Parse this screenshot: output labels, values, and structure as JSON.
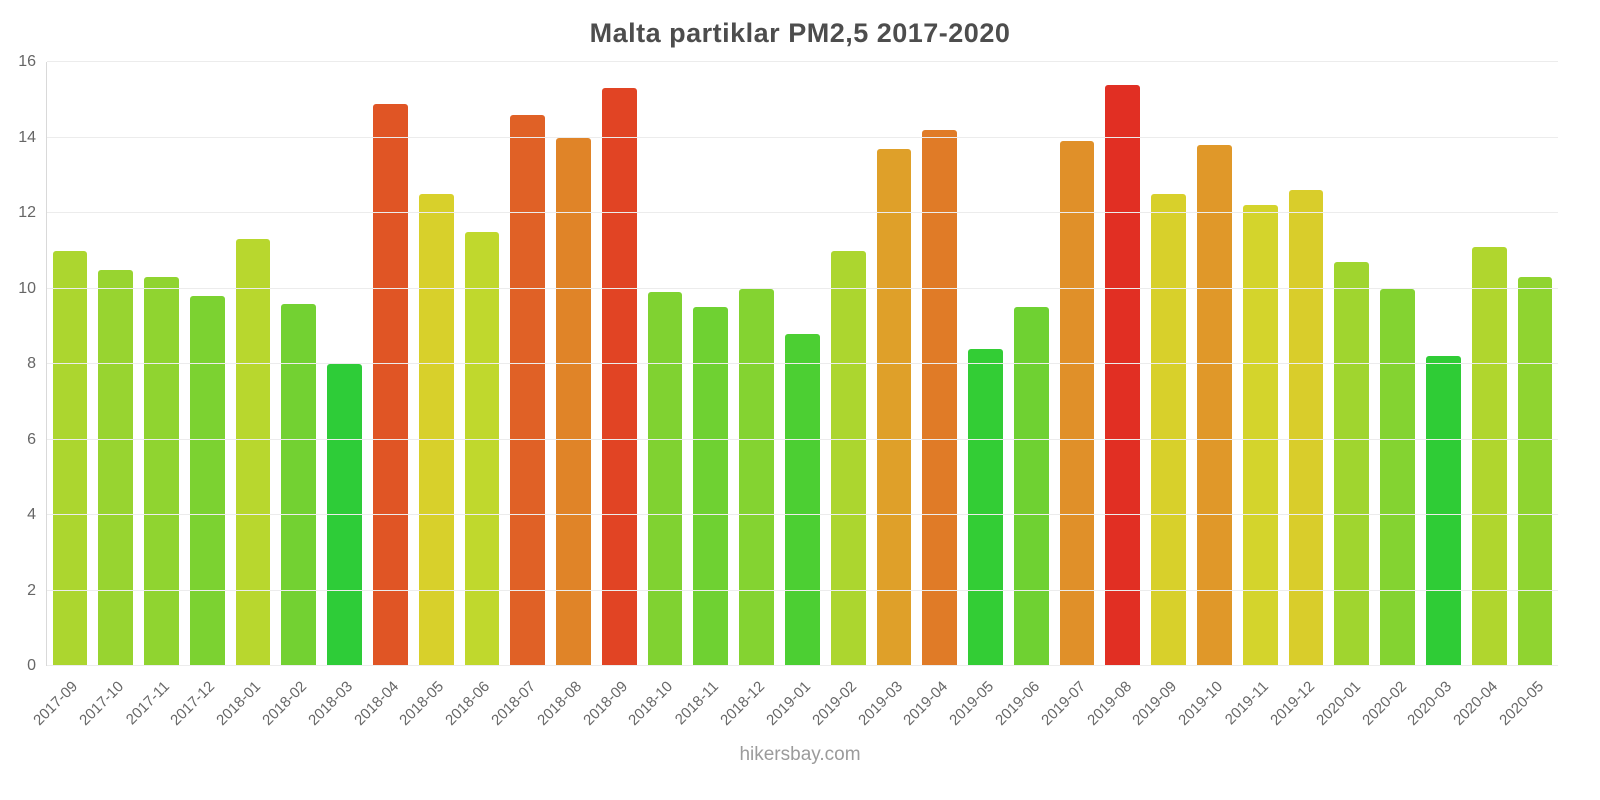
{
  "title": "Malta partiklar PM2,5 2017-2020",
  "footer": "hikersbay.com",
  "chart_data": {
    "type": "bar",
    "title": "Malta partiklar PM2,5 2017-2020",
    "xlabel": "",
    "ylabel": "",
    "ylim": [
      0,
      16
    ],
    "yticks": [
      0,
      2,
      4,
      6,
      8,
      10,
      12,
      14,
      16
    ],
    "grid": true,
    "legend": false,
    "categories": [
      "2017-09",
      "2017-10",
      "2017-11",
      "2017-12",
      "2018-01",
      "2018-02",
      "2018-03",
      "2018-04",
      "2018-05",
      "2018-06",
      "2018-07",
      "2018-08",
      "2018-09",
      "2018-10",
      "2018-11",
      "2018-12",
      "2019-01",
      "2019-02",
      "2019-03",
      "2019-04",
      "2019-05",
      "2019-06",
      "2019-07",
      "2019-08",
      "2019-09",
      "2019-10",
      "2019-11",
      "2019-12",
      "2020-01",
      "2020-02",
      "2020-03",
      "2020-04",
      "2020-05"
    ],
    "values": [
      11.0,
      10.5,
      10.3,
      9.8,
      11.3,
      9.6,
      8.0,
      14.9,
      12.5,
      11.5,
      14.6,
      14.0,
      15.3,
      9.9,
      9.5,
      10.0,
      8.8,
      11.0,
      13.7,
      14.2,
      8.4,
      9.5,
      13.9,
      15.4,
      12.5,
      13.8,
      12.2,
      12.6,
      10.7,
      10.0,
      8.2,
      11.1,
      10.3
    ],
    "colors": [
      "#acd62f",
      "#98d430",
      "#90d430",
      "#7cd231",
      "#b8d72e",
      "#73d132",
      "#2ecc38",
      "#e05525",
      "#d8d02b",
      "#c0d82d",
      "#e06126",
      "#e08428",
      "#e14424",
      "#80d231",
      "#6fd132",
      "#84d331",
      "#4ccf33",
      "#acd62f",
      "#dfa029",
      "#e07b27",
      "#33cd35",
      "#6fd132",
      "#e09029",
      "#e12f23",
      "#d8d02b",
      "#e09829",
      "#d4d42c",
      "#d9cd2b",
      "#a0d52f",
      "#84d331",
      "#2fcc36",
      "#b0d62e",
      "#90d430"
    ]
  }
}
